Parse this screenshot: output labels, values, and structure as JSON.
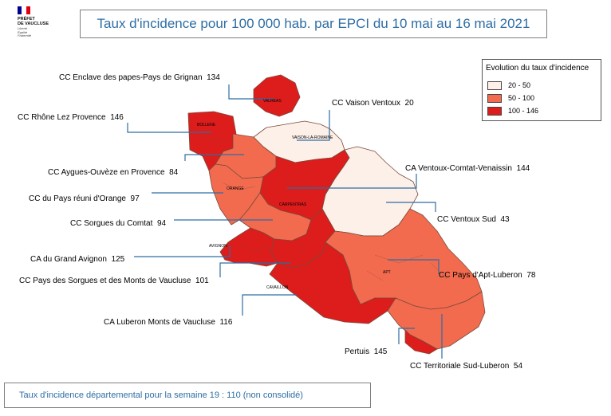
{
  "logo": {
    "line1": "PRÉFET",
    "line2": "DE VAUCLUSE",
    "line3": "Liberté\nÉgalité\nFraternité"
  },
  "title": "Taux d'incidence pour 100 000 hab. par EPCI du 10 mai  au 16 mai 2021",
  "legend": {
    "title": "Evolution du taux d'incidence",
    "classes": [
      {
        "label": "20 - 50",
        "color": "#fdf0e8"
      },
      {
        "label": "50 - 100",
        "color": "#f26b4e"
      },
      {
        "label": "100 - 146",
        "color": "#dd1c1c"
      }
    ]
  },
  "colors": {
    "low": "#fdf0e8",
    "mid": "#f26b4e",
    "high": "#dd1c1c",
    "leader": "#2e6da4",
    "title": "#2e6da4"
  },
  "epci": [
    {
      "name": "CC Enclave des papes-Pays de Grignan",
      "value": "134"
    },
    {
      "name": "CC Vaison Ventoux",
      "value": "20"
    },
    {
      "name": "CC Rhône Lez Provence",
      "value": "146"
    },
    {
      "name": "CA Ventoux-Comtat-Venaissin",
      "value": "144"
    },
    {
      "name": "CC Aygues-Ouvèze en Provence",
      "value": "84"
    },
    {
      "name": "CC du Pays réuni d'Orange",
      "value": "97"
    },
    {
      "name": "CC Ventoux Sud",
      "value": "43"
    },
    {
      "name": "CC Sorgues du Comtat",
      "value": "94"
    },
    {
      "name": "CA du Grand Avignon",
      "value": "125"
    },
    {
      "name": "CC Pays d'Apt-Luberon",
      "value": "78"
    },
    {
      "name": "CC Pays des Sorgues et des Monts de Vaucluse",
      "value": "101"
    },
    {
      "name": "CA Luberon Monts de Vaucluse",
      "value": "116"
    },
    {
      "name": "Pertuis",
      "value": "145"
    },
    {
      "name": "CC Territoriale Sud-Luberon",
      "value": "54"
    }
  ],
  "cities": [
    "VALREAS",
    "BOLLENE",
    "VAISON-LA-ROMAINE",
    "ORANGE",
    "CARPENTRAS",
    "AVIGNON",
    "APT",
    "CAVAILLON"
  ],
  "footer": "Taux d'incidence départemental pour la semaine 19  :  110  (non consolidé)"
}
